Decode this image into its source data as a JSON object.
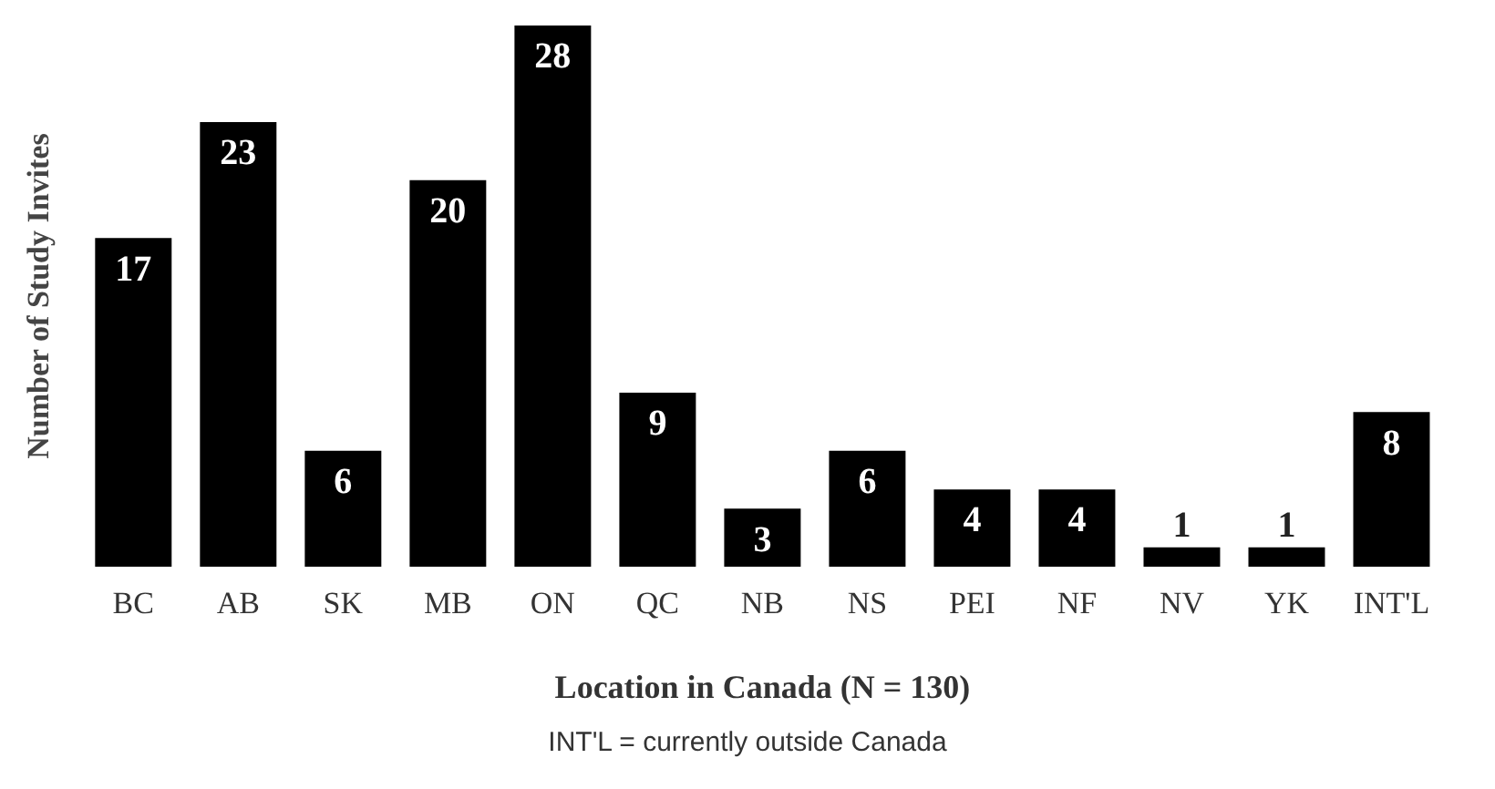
{
  "chart_data": {
    "type": "bar",
    "xlabel": "Location in Canada (N = 130)",
    "ylabel": "Number of Study Invites",
    "categories": [
      "BC",
      "AB",
      "SK",
      "MB",
      "ON",
      "QC",
      "NB",
      "NS",
      "PEI",
      "NF",
      "NV",
      "YK",
      "INT'L"
    ],
    "values": [
      17,
      23,
      6,
      20,
      28,
      9,
      3,
      6,
      4,
      4,
      1,
      1,
      8
    ],
    "color": "#000000",
    "data_labels": true,
    "tick_labels": "x",
    "grid": false,
    "legend": false,
    "annotations": [
      "INT'L = currently outside Canada"
    ]
  }
}
